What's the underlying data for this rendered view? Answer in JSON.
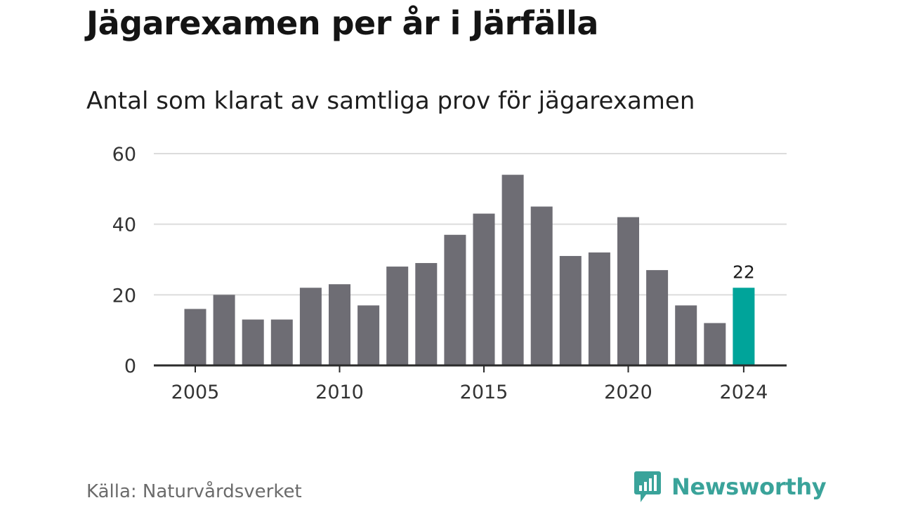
{
  "chart_data": {
    "type": "bar",
    "title": "Jägarexamen per år i Järfälla",
    "subtitle": "Antal som klarat av samtliga prov för jägarexamen",
    "source": "Källa: Naturvårdsverket",
    "brand": "Newsworthy",
    "x": [
      2005,
      2006,
      2007,
      2008,
      2009,
      2010,
      2011,
      2012,
      2013,
      2014,
      2015,
      2016,
      2017,
      2018,
      2019,
      2020,
      2021,
      2022,
      2023,
      2024
    ],
    "values": [
      16,
      20,
      13,
      13,
      22,
      23,
      17,
      28,
      29,
      37,
      43,
      54,
      45,
      31,
      32,
      42,
      27,
      17,
      12,
      22
    ],
    "x_ticks": [
      "2005",
      "2010",
      "2015",
      "2020",
      "2024"
    ],
    "y_ticks": [
      "0",
      "20",
      "40",
      "60"
    ],
    "ylim": [
      0,
      60
    ],
    "grid": true,
    "highlight": {
      "x": 2024,
      "label": "22"
    },
    "colors": {
      "bar": "#6e6d74",
      "highlight": "#00a49a",
      "grid": "#dcdcdc",
      "axis": "#2b2b2b",
      "brand": "#3aa39a"
    }
  }
}
